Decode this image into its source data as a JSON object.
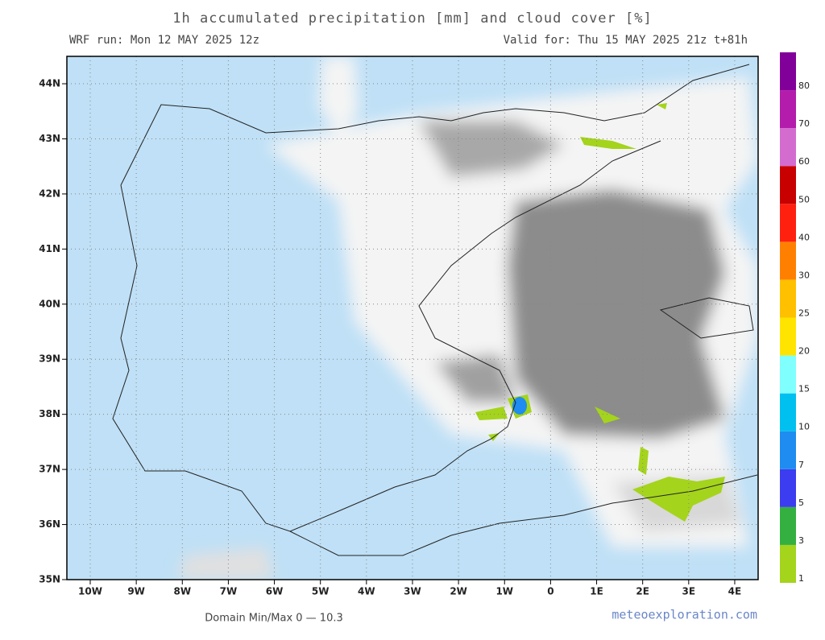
{
  "header": {
    "title": "1h accumulated precipitation [mm] and cloud cover [%]",
    "run": "WRF run: Mon 12 MAY 2025 12z",
    "valid": "Valid for: Thu 15 MAY 2025 21z  t+81h"
  },
  "map": {
    "lon_labels": [
      "10W",
      "9W",
      "8W",
      "7W",
      "6W",
      "5W",
      "4W",
      "3W",
      "2W",
      "1W",
      "0",
      "1E",
      "2E",
      "3E",
      "4E"
    ],
    "lat_labels": [
      "35N",
      "36N",
      "37N",
      "38N",
      "39N",
      "40N",
      "41N",
      "42N",
      "43N",
      "44N"
    ]
  },
  "colorbar": {
    "levels": [
      1,
      3,
      5,
      7,
      10,
      15,
      20,
      25,
      30,
      40,
      50,
      60,
      70,
      80
    ],
    "colors": [
      "#a4d41c",
      "#34b040",
      "#3c3cf0",
      "#1e8cf0",
      "#00c0f0",
      "#80ffff",
      "#ffe400",
      "#ffc000",
      "#ff8000",
      "#ff2010",
      "#c80000",
      "#d46cd0",
      "#b41cac",
      "#82009a"
    ]
  },
  "footer": {
    "minmax": "Domain Min/Max 0 — 10.3",
    "site": "meteoexploration.com"
  }
}
